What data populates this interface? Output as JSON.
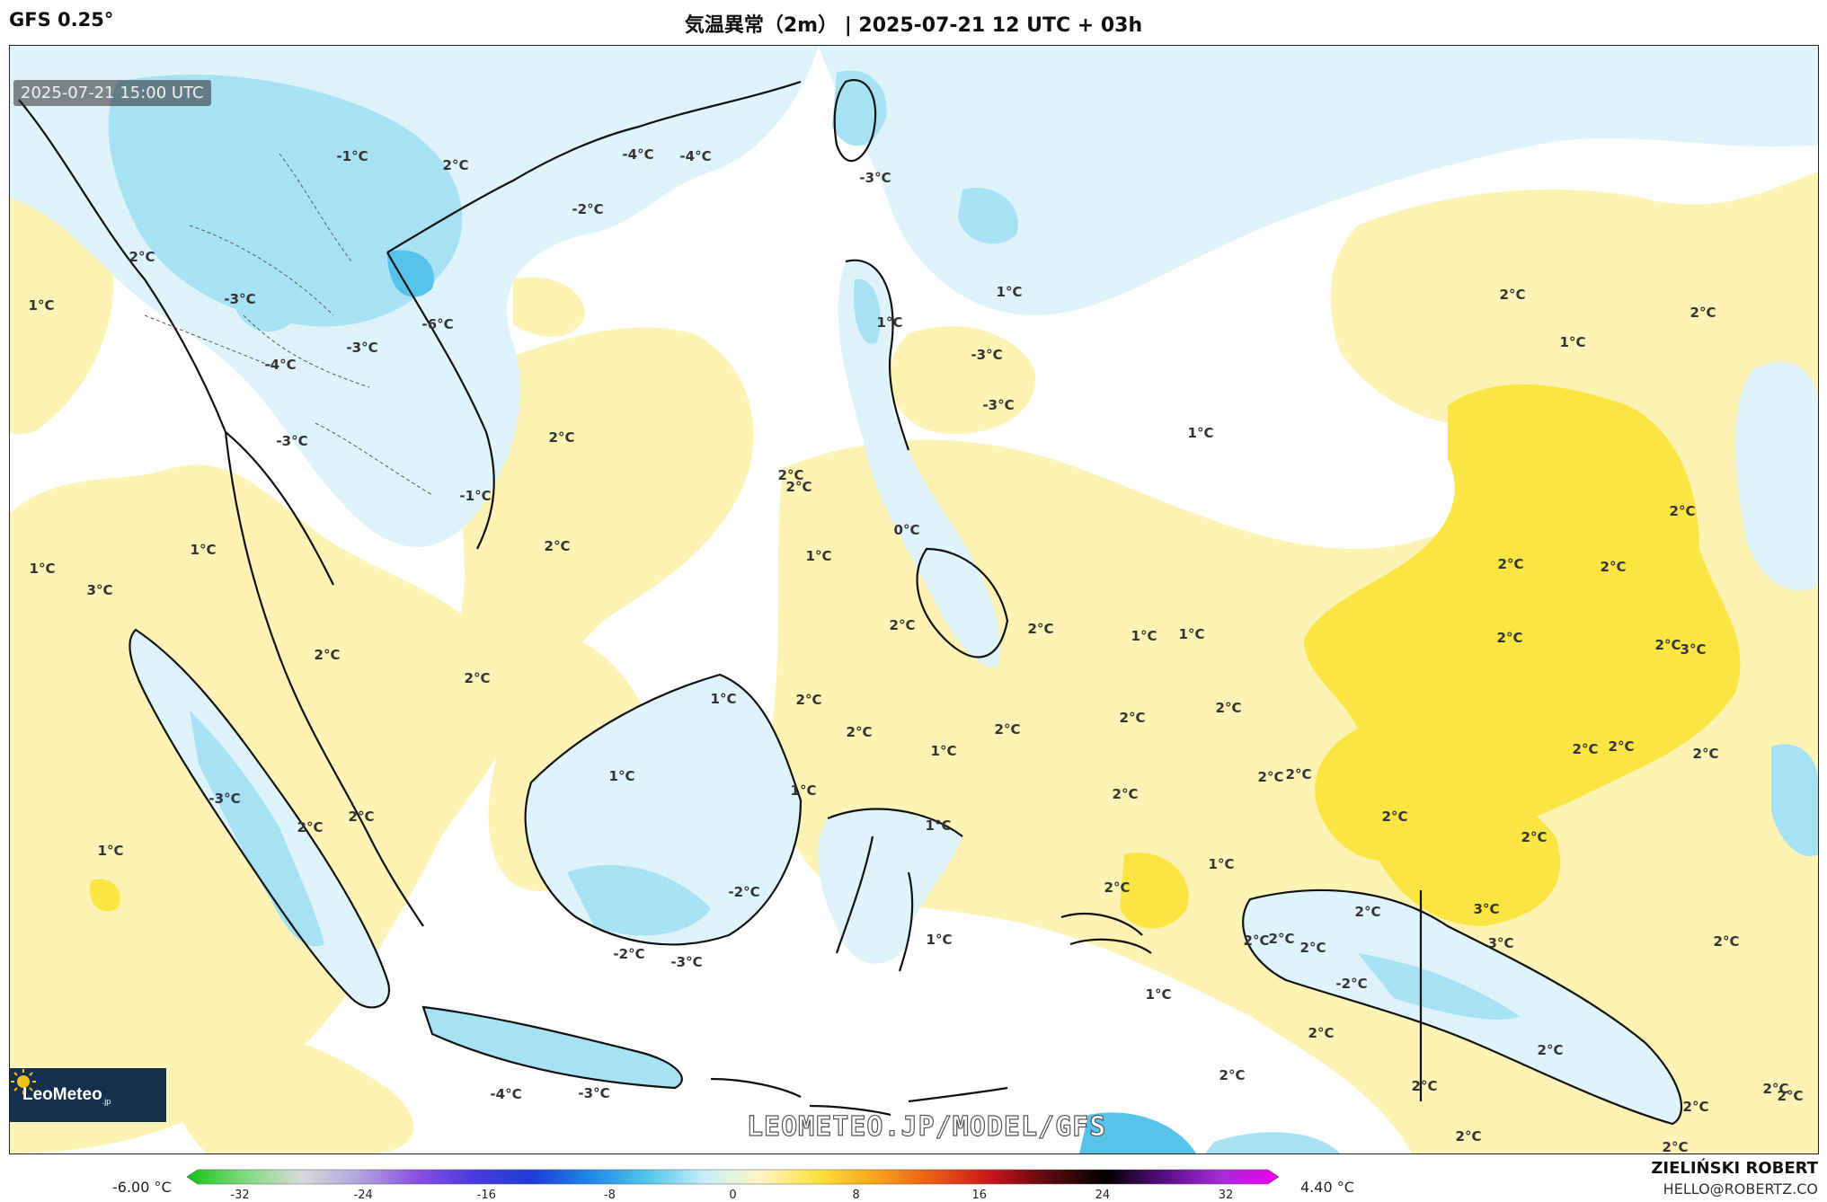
{
  "header": {
    "model": "GFS 0.25°",
    "title": "気温異常（2m） | 2025-07-21 12 UTC + 03h"
  },
  "map": {
    "valid_time": "2025-07-21 15:00 UTC",
    "watermark": "LEOMETEO.JP/MODEL/GFS",
    "logo": {
      "name": "LeoMeteo",
      "suffix": ".jp",
      "icon": "sun-icon"
    },
    "palette": {
      "warm_light": "#fdf3b4",
      "warm_strong": "#fbe542",
      "cool_light": "#dff3fb",
      "cool_mid": "#a7e2f4",
      "cool_strong": "#57c3ea"
    },
    "labels": [
      "1°C",
      "2°C",
      "-1°C",
      "-2°C",
      "-3°C",
      "-4°C",
      "-6°C",
      "3°C",
      "0°C"
    ],
    "contour_labels": [
      {
        "t": "-1°C"
      },
      {
        "t": "2°C"
      },
      {
        "t": "-4°C"
      },
      {
        "t": "-4°C"
      },
      {
        "t": "-2°C"
      },
      {
        "t": "-3°C"
      },
      {
        "t": "2°C"
      },
      {
        "t": "1°C"
      },
      {
        "t": "-3°C"
      },
      {
        "t": "-6°C"
      },
      {
        "t": "-3°C"
      },
      {
        "t": "-4°C"
      },
      {
        "t": "-3°C"
      },
      {
        "t": "-1°C"
      },
      {
        "t": "2°C"
      },
      {
        "t": "2°C"
      },
      {
        "t": "1°C"
      },
      {
        "t": "1°C"
      },
      {
        "t": "2°C"
      },
      {
        "t": "2°C"
      },
      {
        "t": "1°C"
      },
      {
        "t": "1°C"
      },
      {
        "t": "-3°C"
      },
      {
        "t": "2°C"
      },
      {
        "t": "3°C"
      },
      {
        "t": "1°C"
      },
      {
        "t": "1°C"
      },
      {
        "t": "2°C"
      },
      {
        "t": "2°C"
      },
      {
        "t": "2°C"
      },
      {
        "t": "-3°C"
      },
      {
        "t": "2°C"
      },
      {
        "t": "2°C"
      },
      {
        "t": "1°C"
      },
      {
        "t": "-4°C"
      },
      {
        "t": "-3°C"
      },
      {
        "t": "-2°C"
      },
      {
        "t": "-2°C"
      },
      {
        "t": "-3°C"
      },
      {
        "t": "1°C"
      },
      {
        "t": "1°C"
      },
      {
        "t": "2°C"
      },
      {
        "t": "1°C"
      },
      {
        "t": "1°C"
      },
      {
        "t": "1°C"
      },
      {
        "t": "2°C"
      },
      {
        "t": "-3°C"
      },
      {
        "t": "2°C"
      },
      {
        "t": "-3°C"
      },
      {
        "t": "0°C"
      },
      {
        "t": "1°C"
      },
      {
        "t": "2°C"
      },
      {
        "t": "1°C"
      },
      {
        "t": "1°C"
      },
      {
        "t": "2°C"
      },
      {
        "t": "2°C"
      },
      {
        "t": "1°C"
      },
      {
        "t": "2°C"
      },
      {
        "t": "2°C"
      },
      {
        "t": "1°C"
      },
      {
        "t": "1°C"
      },
      {
        "t": "2°C"
      },
      {
        "t": "2°C"
      },
      {
        "t": "2°C"
      },
      {
        "t": "2°C"
      },
      {
        "t": "2°C"
      },
      {
        "t": "2°C"
      },
      {
        "t": "2°C"
      },
      {
        "t": "2°C"
      },
      {
        "t": "2°C"
      },
      {
        "t": "2°C"
      },
      {
        "t": "2°C"
      },
      {
        "t": "2°C"
      },
      {
        "t": "2°C"
      },
      {
        "t": "2°C"
      },
      {
        "t": "2°C"
      },
      {
        "t": "2°C"
      },
      {
        "t": "2°C"
      },
      {
        "t": "3°C"
      },
      {
        "t": "3°C"
      },
      {
        "t": "2°C"
      },
      {
        "t": "2°C"
      },
      {
        "t": "2°C"
      },
      {
        "t": "2°C"
      },
      {
        "t": "2°C"
      },
      {
        "t": "3°C"
      },
      {
        "t": "-2°C"
      },
      {
        "t": "2°C"
      },
      {
        "t": "2°C"
      },
      {
        "t": "2°C"
      },
      {
        "t": "2°C"
      },
      {
        "t": "2°C"
      },
      {
        "t": "2°C"
      },
      {
        "t": "2°C"
      },
      {
        "t": "2°C"
      },
      {
        "t": "2°C"
      }
    ]
  },
  "colorbar": {
    "min_label": "-6.00 °C",
    "max_label": "4.40 °C",
    "ticks": [
      "-32",
      "-24",
      "-16",
      "-8",
      "0",
      "8",
      "16",
      "24",
      "32"
    ],
    "colors": [
      "#14c214",
      "#7fdc7f",
      "#d9d9d9",
      "#b0a4e0",
      "#8a4fe0",
      "#4a3adf",
      "#1d3cd8",
      "#1f86e8",
      "#50c6ec",
      "#c8eef9",
      "#fff6c2",
      "#fde03a",
      "#f7a21b",
      "#ea5a13",
      "#c8141a",
      "#5a0a10",
      "#000000",
      "#5a0d86",
      "#a82ad6",
      "#f000f0"
    ]
  },
  "credits": {
    "author": "ZIELIŃSKI ROBERT",
    "email": "HELLO@ROBERTZ.CO"
  }
}
